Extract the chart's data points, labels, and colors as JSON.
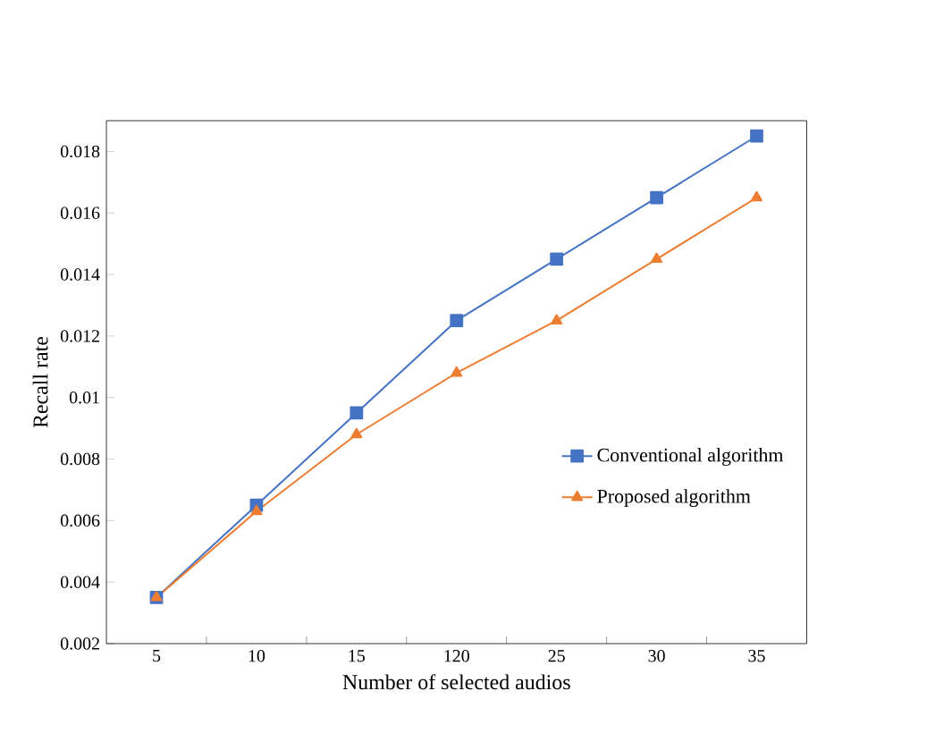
{
  "chart_data": {
    "type": "line",
    "xlabel": "Number of selected audios",
    "ylabel": "Recall rate",
    "categories": [
      "5",
      "10",
      "15",
      "120",
      "25",
      "30",
      "35"
    ],
    "series": [
      {
        "name": "Conventional algorithm",
        "color": "#4472c4",
        "marker": "square",
        "values": [
          0.0035,
          0.0065,
          0.0095,
          0.0125,
          0.0145,
          0.0165,
          0.0185
        ]
      },
      {
        "name": "Proposed algorithm",
        "color": "#ed7d31",
        "marker": "triangle",
        "values": [
          0.0035,
          0.0063,
          0.0088,
          0.0108,
          0.0125,
          0.0145,
          0.0165
        ]
      }
    ],
    "ylim": [
      0.002,
      0.019
    ],
    "yticks": [
      0.002,
      0.004,
      0.006,
      0.008,
      0.01,
      0.012,
      0.014,
      0.016,
      0.018
    ],
    "legend": "right",
    "grid": false,
    "line_style": "solid"
  }
}
